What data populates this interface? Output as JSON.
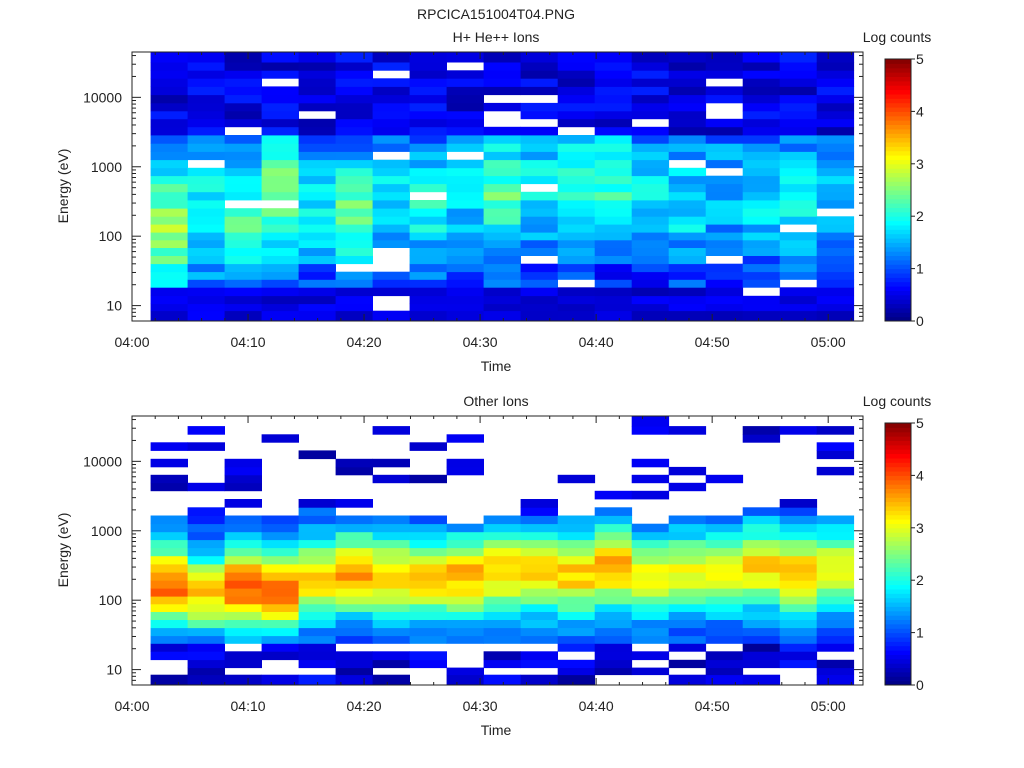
{
  "figure": {
    "title": "RPCICA151004T04.PNG"
  },
  "colorscale": {
    "stops": [
      "#00007f",
      "#0000ff",
      "#007fff",
      "#00ffff",
      "#7fff7f",
      "#ffff00",
      "#ff7f00",
      "#ff0000",
      "#7f0000"
    ]
  },
  "chart_data": [
    {
      "type": "heatmap",
      "title": "H+ He++ Ions",
      "xlabel": "Time",
      "ylabel": "Energy (eV)",
      "x_ticks": [
        "04:00",
        "04:10",
        "04:20",
        "04:30",
        "04:40",
        "04:50",
        "05:00"
      ],
      "y_ticks": [
        "10",
        "100",
        "1000",
        "10000"
      ],
      "y_scale": "log",
      "ylim": [
        6,
        45000
      ],
      "xlim_minutes": [
        0,
        63
      ],
      "colorbar": {
        "label": "Log counts",
        "ticks": [
          "0",
          "1",
          "2",
          "3",
          "4",
          "5"
        ],
        "range": [
          0,
          5
        ]
      },
      "time_bins": 19,
      "energy_bins": [
        7.5,
        9.5,
        12,
        16,
        21,
        27,
        35,
        46,
        60,
        78,
        100,
        130,
        170,
        220,
        290,
        380,
        500,
        650,
        850,
        1100,
        1450,
        1900,
        2500,
        3300,
        4300,
        5600,
        7300,
        9500,
        12500,
        16500,
        21500,
        28000,
        37000
      ],
      "column_profiles": [
        {
          "peak_energy": 130,
          "peak_value": 2.6,
          "spread": 1.0
        },
        {
          "peak_energy": 250,
          "peak_value": 2.0,
          "spread": 1.1
        },
        {
          "peak_energy": 150,
          "peak_value": 2.3,
          "spread": 1.0
        },
        {
          "peak_energy": 400,
          "peak_value": 2.5,
          "spread": 1.1
        },
        {
          "peak_energy": 300,
          "peak_value": 1.9,
          "spread": 1.0
        },
        {
          "peak_energy": 200,
          "peak_value": 2.3,
          "spread": 1.0
        },
        {
          "peak_energy": 300,
          "peak_value": 1.8,
          "spread": 1.0
        },
        {
          "peak_energy": 250,
          "peak_value": 1.9,
          "spread": 1.0
        },
        {
          "peak_energy": 400,
          "peak_value": 1.7,
          "spread": 1.0
        },
        {
          "peak_energy": 400,
          "peak_value": 2.3,
          "spread": 1.1
        },
        {
          "peak_energy": 500,
          "peak_value": 1.8,
          "spread": 1.0
        },
        {
          "peak_energy": 600,
          "peak_value": 1.9,
          "spread": 1.1
        },
        {
          "peak_energy": 600,
          "peak_value": 2.1,
          "spread": 1.0
        },
        {
          "peak_energy": 400,
          "peak_value": 1.7,
          "spread": 1.0
        },
        {
          "peak_energy": 300,
          "peak_value": 1.8,
          "spread": 1.0
        },
        {
          "peak_energy": 500,
          "peak_value": 1.6,
          "spread": 1.0
        },
        {
          "peak_energy": 400,
          "peak_value": 1.7,
          "spread": 1.0
        },
        {
          "peak_energy": 300,
          "peak_value": 1.9,
          "spread": 1.0
        },
        {
          "peak_energy": 400,
          "peak_value": 1.6,
          "spread": 1.0
        }
      ],
      "background_value": 0.6,
      "top_value": 0.5
    },
    {
      "type": "heatmap",
      "title": "Other Ions",
      "xlabel": "Time",
      "ylabel": "Energy (eV)",
      "x_ticks": [
        "04:00",
        "04:10",
        "04:20",
        "04:30",
        "04:40",
        "04:50",
        "05:00"
      ],
      "y_ticks": [
        "10",
        "100",
        "1000",
        "10000"
      ],
      "y_scale": "log",
      "ylim": [
        6,
        45000
      ],
      "xlim_minutes": [
        0,
        63
      ],
      "colorbar": {
        "label": "Log counts",
        "ticks": [
          "0",
          "1",
          "2",
          "3",
          "4",
          "5"
        ],
        "range": [
          0,
          5
        ]
      },
      "time_bins": 19,
      "energy_bins": [
        7.5,
        9.5,
        12,
        16,
        21,
        27,
        35,
        46,
        60,
        78,
        100,
        130,
        170,
        220,
        290,
        380,
        500,
        650,
        850,
        1100,
        1450,
        1900,
        2500,
        3300,
        4300,
        5600,
        7300,
        9500,
        12500,
        16500,
        21500,
        28000,
        37000
      ],
      "column_profiles": [
        {
          "peak_energy": 170,
          "peak_value": 3.9,
          "spread": 0.55
        },
        {
          "peak_energy": 130,
          "peak_value": 3.4,
          "spread": 0.5
        },
        {
          "peak_energy": 160,
          "peak_value": 4.0,
          "spread": 0.55
        },
        {
          "peak_energy": 140,
          "peak_value": 3.9,
          "spread": 0.55
        },
        {
          "peak_energy": 200,
          "peak_value": 3.3,
          "spread": 0.55
        },
        {
          "peak_energy": 250,
          "peak_value": 3.6,
          "spread": 0.55
        },
        {
          "peak_energy": 220,
          "peak_value": 3.4,
          "spread": 0.55
        },
        {
          "peak_energy": 200,
          "peak_value": 3.3,
          "spread": 0.55
        },
        {
          "peak_energy": 220,
          "peak_value": 3.5,
          "spread": 0.55
        },
        {
          "peak_energy": 260,
          "peak_value": 3.4,
          "spread": 0.55
        },
        {
          "peak_energy": 250,
          "peak_value": 3.3,
          "spread": 0.55
        },
        {
          "peak_energy": 240,
          "peak_value": 3.4,
          "spread": 0.55
        },
        {
          "peak_energy": 300,
          "peak_value": 3.5,
          "spread": 0.55
        },
        {
          "peak_energy": 220,
          "peak_value": 3.0,
          "spread": 0.55
        },
        {
          "peak_energy": 250,
          "peak_value": 3.0,
          "spread": 0.55
        },
        {
          "peak_energy": 260,
          "peak_value": 3.0,
          "spread": 0.55
        },
        {
          "peak_energy": 300,
          "peak_value": 3.3,
          "spread": 0.55
        },
        {
          "peak_energy": 250,
          "peak_value": 3.4,
          "spread": 0.55
        },
        {
          "peak_energy": 280,
          "peak_value": 3.2,
          "spread": 0.55
        }
      ],
      "band_top_energy": 1700,
      "band_bottom_energy": 25
    }
  ]
}
